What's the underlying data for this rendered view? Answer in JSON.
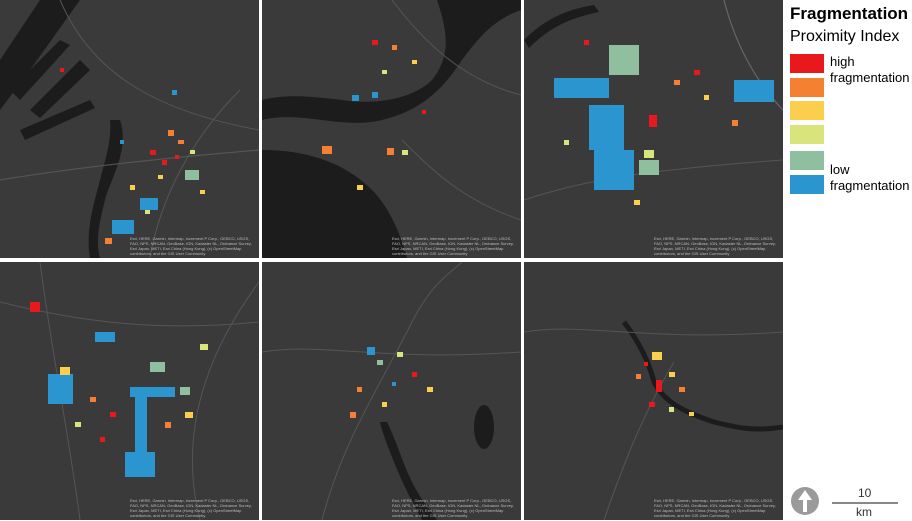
{
  "legend": {
    "title": "Fragmentation",
    "subtitle": "Proximity Index",
    "classes": [
      {
        "color": "#e8181d",
        "label_line1": "high",
        "label_line2": "fragmentation"
      },
      {
        "color": "#f48131",
        "label_line1": "",
        "label_line2": ""
      },
      {
        "color": "#fbcf4d",
        "label_line1": "",
        "label_line2": ""
      },
      {
        "color": "#d9e57c",
        "label_line1": "",
        "label_line2": ""
      },
      {
        "color": "#8fbf9f",
        "label_line1": "low",
        "label_line2": ""
      },
      {
        "color": "#2b95d0",
        "label_line1": "fragmentation",
        "label_line2": ""
      }
    ]
  },
  "scalebar": {
    "value": "10",
    "unit": "km"
  },
  "north_arrow": {
    "icon": "north-arrow-icon"
  },
  "attribution": "Esri, HERE, Garmin, Intermap, increment P Corp., GEBCO, USGS, FAO, NPS, NRCAN, GeoBase, IGN, Kadaster NL, Ordnance Survey, Esri Japan, METI, Esri China (Hong Kong), (c) OpenStreetMap contributors, and the GIS User Community",
  "panels": [
    {
      "id": "panel-1"
    },
    {
      "id": "panel-2"
    },
    {
      "id": "panel-3"
    },
    {
      "id": "panel-4"
    },
    {
      "id": "panel-5"
    },
    {
      "id": "panel-6"
    }
  ]
}
